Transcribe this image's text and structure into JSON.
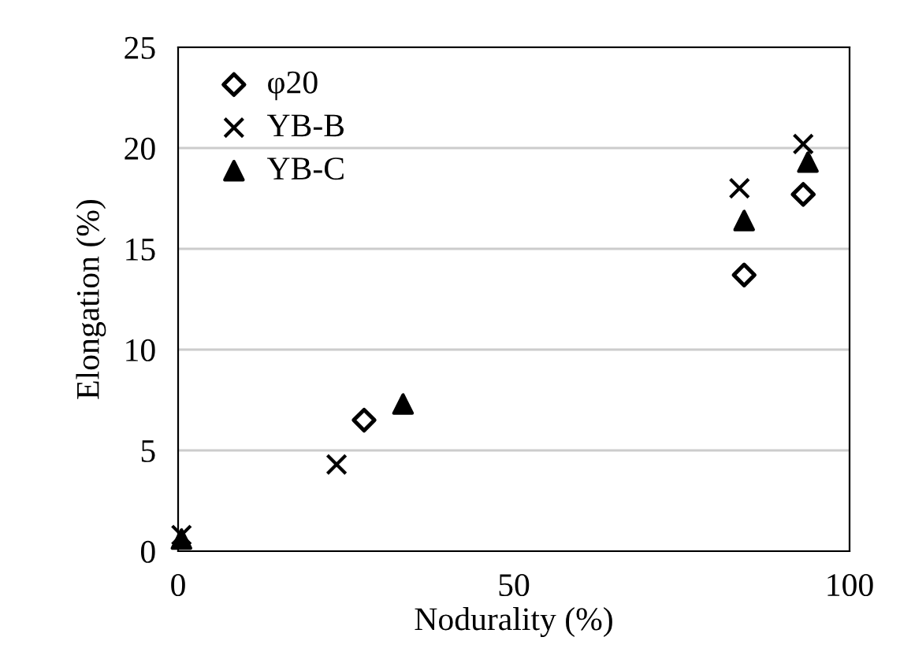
{
  "chart_data": {
    "type": "scatter",
    "xlabel": "Nodurality (%)",
    "ylabel": "Elongation (%)",
    "xlim": [
      0,
      100
    ],
    "xticks": [
      0,
      50,
      100
    ],
    "ylim": [
      0,
      25
    ],
    "yticks": [
      0,
      5,
      10,
      15,
      20,
      25
    ],
    "grid": "y",
    "legend": "top left",
    "series": [
      {
        "name": "φ20",
        "color": "#000000",
        "marker": "diamond",
        "x": [
          27.7,
          84.3,
          93.1
        ],
        "values": [
          6.5,
          13.7,
          17.7
        ]
      },
      {
        "name": "YB-B",
        "color": "#000000",
        "marker": "cross",
        "x": [
          0.5,
          23.6,
          83.6,
          93.1
        ],
        "values": [
          0.8,
          4.3,
          18.0,
          20.2
        ]
      },
      {
        "name": "YB-C",
        "color": "#000000",
        "marker": "triangle",
        "x": [
          0.5,
          33.5,
          84.3,
          93.8
        ],
        "values": [
          0.6,
          7.3,
          16.4,
          19.3
        ]
      }
    ]
  }
}
